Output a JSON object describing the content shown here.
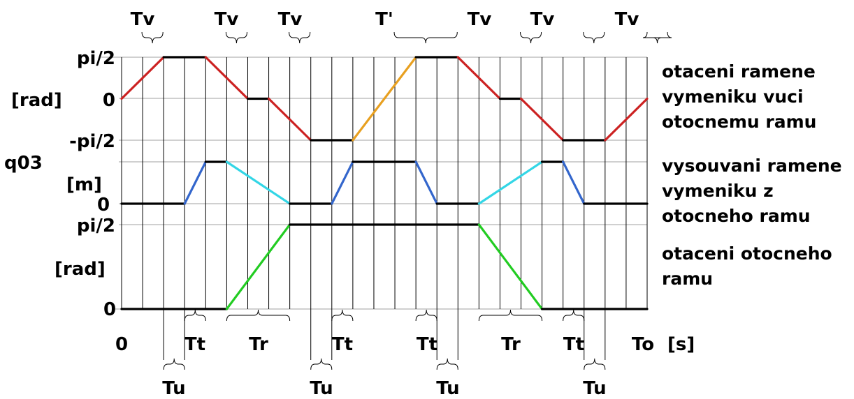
{
  "y_labels": {
    "rot_top": "pi/2",
    "rot_unit": "[rad]",
    "rot_zero": "0",
    "rot_bottom": "-pi/2",
    "ext_top": "q03",
    "ext_unit": "[m]",
    "ext_zero": "0",
    "arm_top": "pi/2",
    "arm_unit": "[rad]",
    "arm_zero": "0"
  },
  "x_labels": {
    "origin": "0",
    "end": "To",
    "unit": "[s]"
  },
  "side_labels": {
    "rotation": [
      "otaceni ramene",
      "vymeniku vuci",
      "otocnemu ramu"
    ],
    "extension": [
      "vysouvani ramene",
      "vymeniku z",
      "otocneho ramu"
    ],
    "arm": [
      "otaceni otocneho",
      "ramu"
    ]
  },
  "top_intervals": [
    "Tv",
    "Tv",
    "Tv",
    "T'",
    "Tv",
    "Tv",
    "Tv"
  ],
  "bottom_intervals": [
    "Tt",
    "Tr",
    "Tt",
    "Tt",
    "Tr",
    "Tt"
  ],
  "low_intervals": [
    "Tu",
    "Tu",
    "Tu",
    "Tu"
  ],
  "colors": {
    "rotation": "#cc2222",
    "rotation_alt": "#e8a020",
    "hold": "#000000",
    "extend": "#3366cc",
    "retract": "#33d6e6",
    "arm": "#22cc22"
  },
  "chart_data": {
    "type": "line",
    "x_breakpoints": [
      "0",
      "Tv",
      "Tt",
      "Tv",
      "Tr",
      "Tv",
      "Tu",
      "Tt",
      "T'",
      "Tt",
      "Tu",
      "Tv",
      "Tr",
      "Tv",
      "Tt",
      "Tu",
      "Tv",
      "To"
    ],
    "series": [
      {
        "name": "otaceni ramene vymeniku vuci otocnemu ramu",
        "unit": "[rad]",
        "levels": [
          "-pi/2",
          "0",
          "pi/2"
        ],
        "points": [
          [
            0,
            0
          ],
          [
            2,
            1
          ],
          [
            4,
            1
          ],
          [
            6,
            0
          ],
          [
            7,
            0
          ],
          [
            9,
            -1
          ],
          [
            11,
            -1
          ],
          [
            14,
            1
          ],
          [
            16,
            1
          ],
          [
            18,
            0
          ],
          [
            19,
            0
          ],
          [
            21,
            -1
          ],
          [
            23,
            -1
          ],
          [
            25,
            0
          ]
        ]
      },
      {
        "name": "vysouvani ramene vymeniku z otocneho ramu",
        "unit": "[m]",
        "levels": [
          "0",
          "q03"
        ],
        "points": [
          [
            0,
            0
          ],
          [
            3,
            0
          ],
          [
            4,
            1
          ],
          [
            5,
            1
          ],
          [
            8,
            0
          ],
          [
            10,
            0
          ],
          [
            11,
            1
          ],
          [
            14,
            1
          ],
          [
            15,
            0
          ],
          [
            17,
            0
          ],
          [
            20,
            1
          ],
          [
            21,
            1
          ],
          [
            22,
            0
          ],
          [
            25,
            0
          ]
        ]
      },
      {
        "name": "otaceni otocneho ramu",
        "unit": "[rad]",
        "levels": [
          "0",
          "pi/2"
        ],
        "points": [
          [
            0,
            0
          ],
          [
            5,
            0
          ],
          [
            8,
            1
          ],
          [
            17,
            1
          ],
          [
            20,
            0
          ],
          [
            25,
            0
          ]
        ]
      }
    ]
  }
}
